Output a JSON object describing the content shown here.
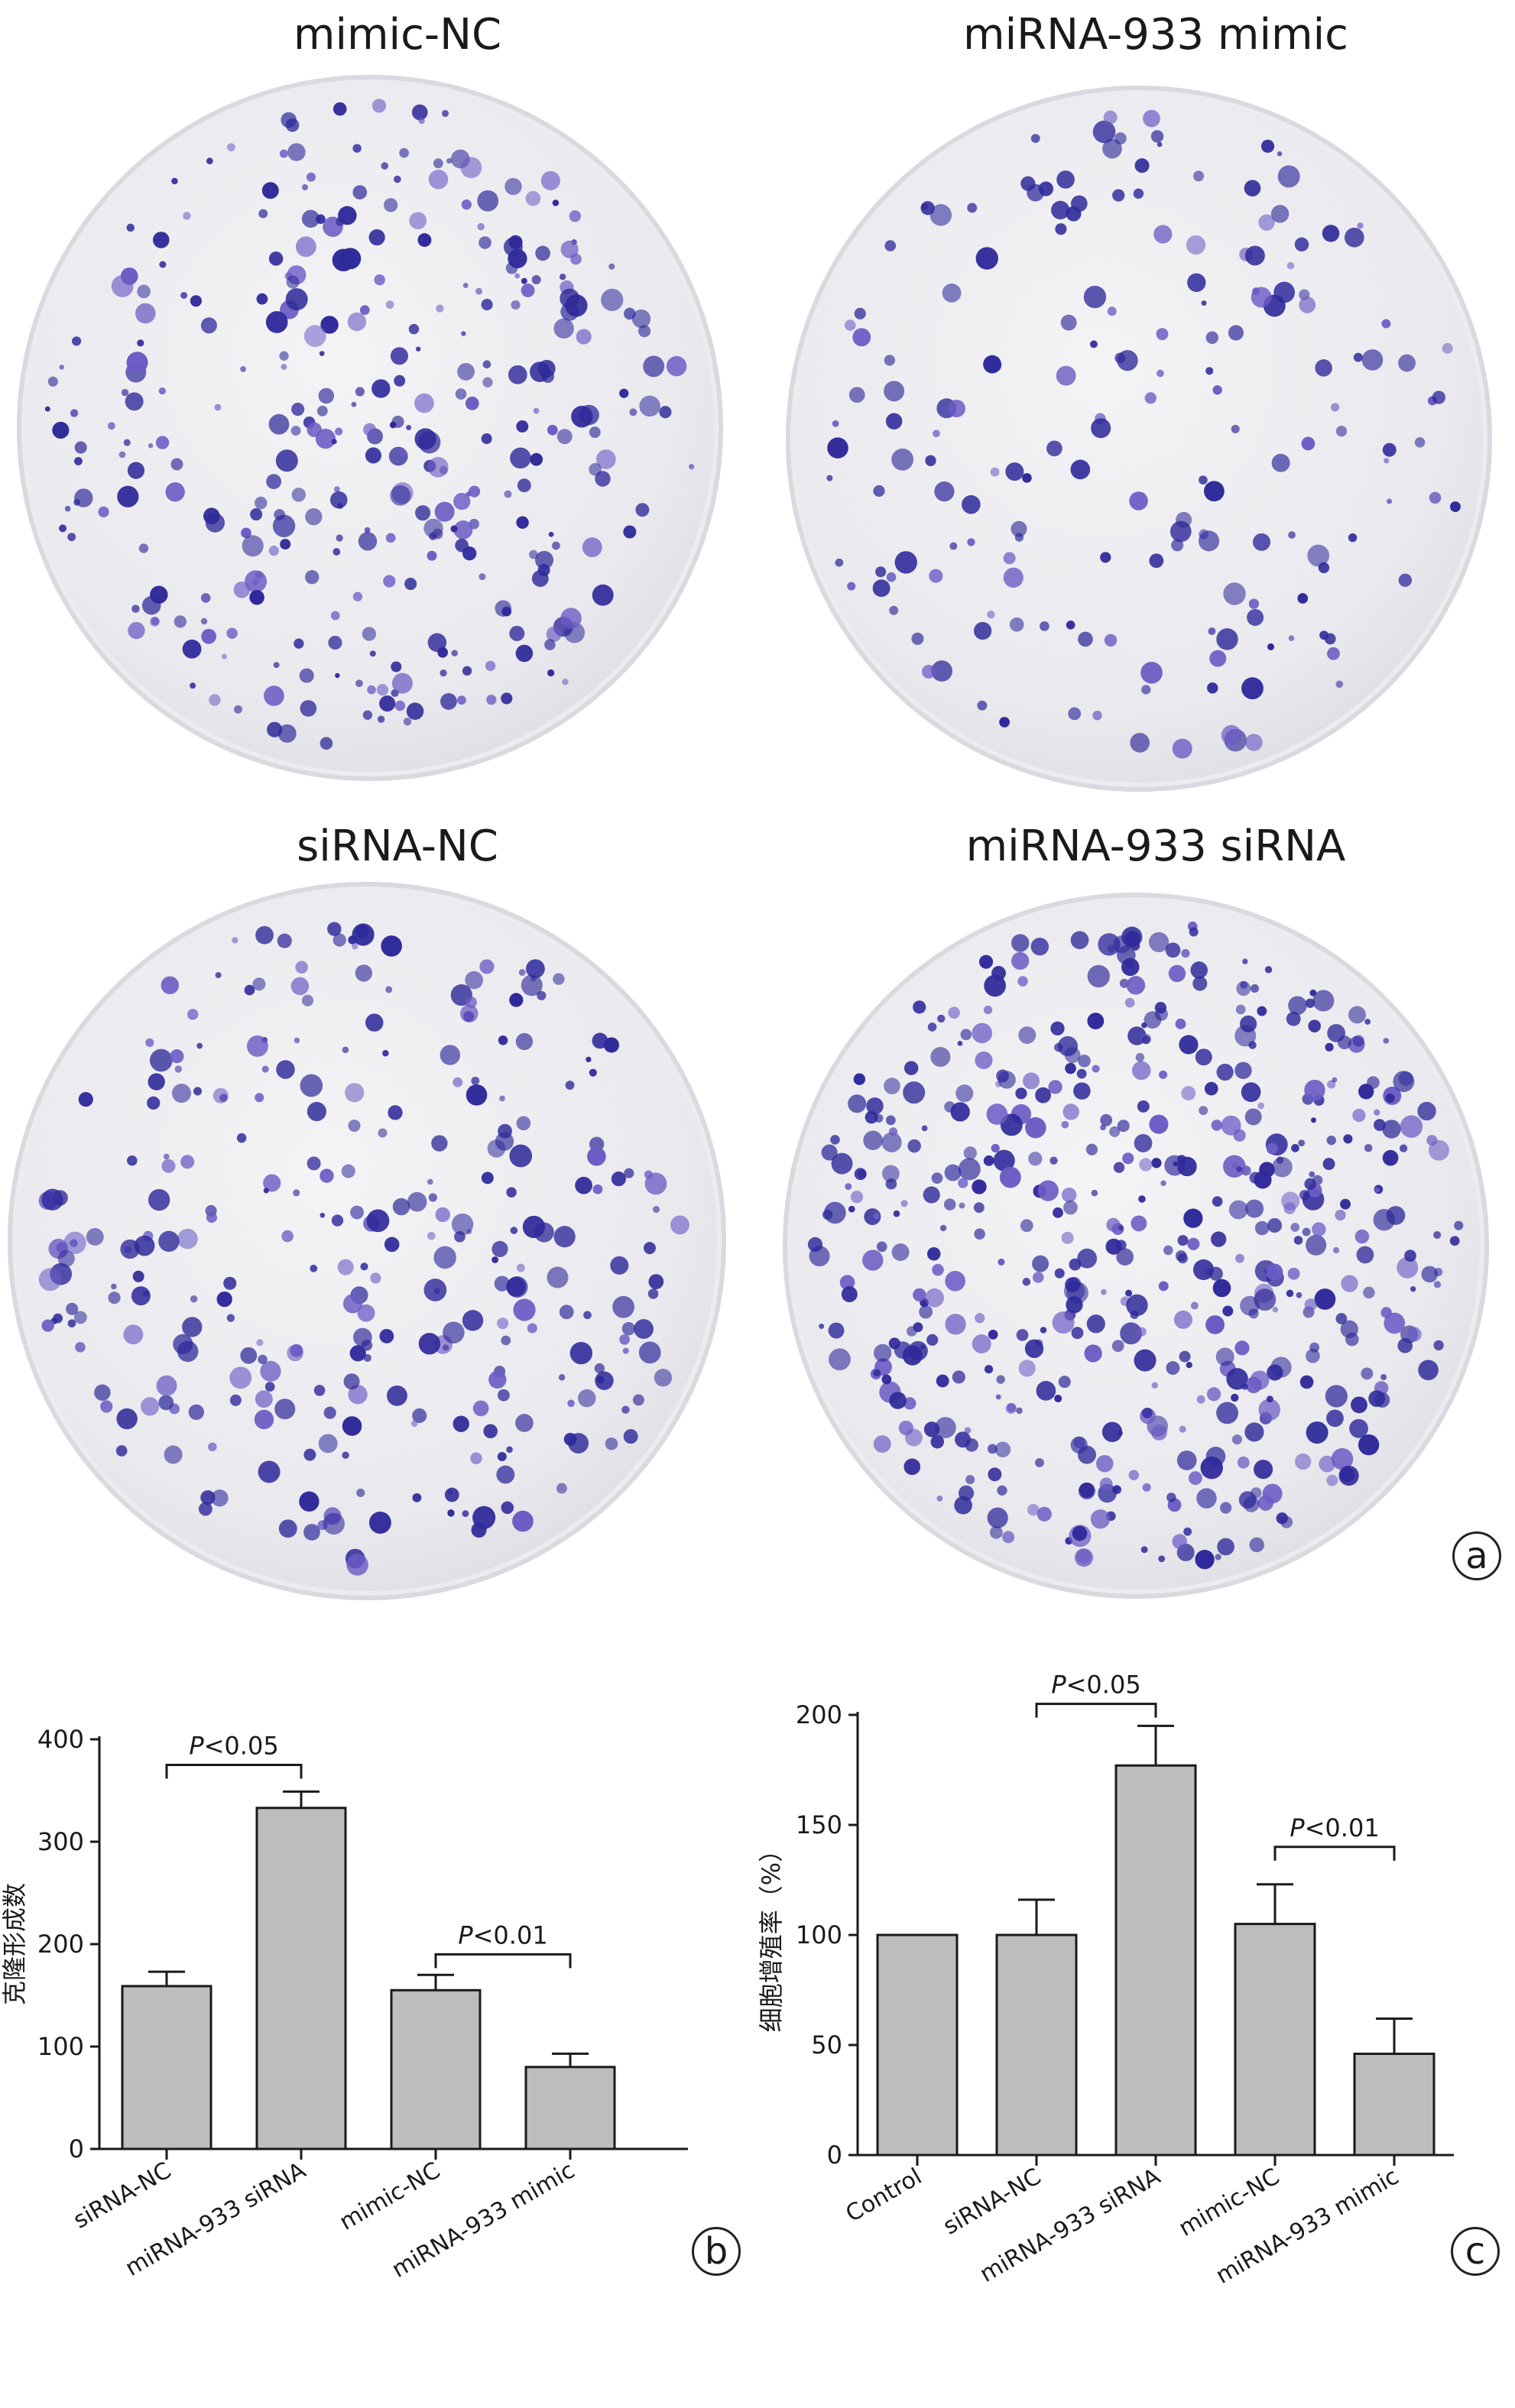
{
  "plates": [
    {
      "title": "mimic-NC",
      "density": 1.0
    },
    {
      "title": "miRNA-933 mimic",
      "density": 0.55
    },
    {
      "title": "siRNA-NC",
      "density": 0.9
    },
    {
      "title": "miRNA-933 siRNA",
      "density": 1.6
    }
  ],
  "panel_labels": {
    "a": "a",
    "b": "b",
    "c": "c"
  },
  "colors": {
    "bar": "#bdbdbd",
    "colony": "#2f2a9a",
    "colony_light": "#6b5bc4"
  },
  "chart_data": [
    {
      "type": "bar",
      "title": "",
      "xlabel": "",
      "ylabel": "克隆形成数",
      "categories": [
        "siRNA-NC",
        "miRNA-933 siRNA",
        "mimic-NC",
        "miRNA-933 mimic"
      ],
      "values": [
        159,
        333,
        155,
        80
      ],
      "errors": [
        14,
        16,
        15,
        13
      ],
      "ylim": [
        0,
        400
      ],
      "yticks": [
        "0",
        "100",
        "200",
        "300",
        "400"
      ],
      "annotations": [
        {
          "from": 0,
          "to": 1,
          "text": "P<0.05",
          "p_letter": "P",
          "rest": "<0.05",
          "level": 375
        },
        {
          "from": 2,
          "to": 3,
          "text": "P<0.01",
          "p_letter": "P",
          "rest": "<0.01",
          "level": 190
        }
      ]
    },
    {
      "type": "bar",
      "title": "",
      "xlabel": "",
      "ylabel": "细胞增殖率（%）",
      "categories": [
        "Control",
        "siRNA-NC",
        "miRNA-933 siRNA",
        "mimic-NC",
        "miRNA-933 mimic"
      ],
      "values": [
        100,
        100,
        177,
        105,
        46
      ],
      "errors": [
        0,
        16,
        18,
        18,
        16
      ],
      "ylim": [
        0,
        200
      ],
      "yticks": [
        "0",
        "50",
        "100",
        "150",
        "200"
      ],
      "annotations": [
        {
          "from": 1,
          "to": 2,
          "text": "P<0.05",
          "p_letter": "P",
          "rest": "<0.05",
          "level": 205
        },
        {
          "from": 3,
          "to": 4,
          "text": "P<0.01",
          "p_letter": "P",
          "rest": "<0.01",
          "level": 140
        }
      ]
    }
  ]
}
